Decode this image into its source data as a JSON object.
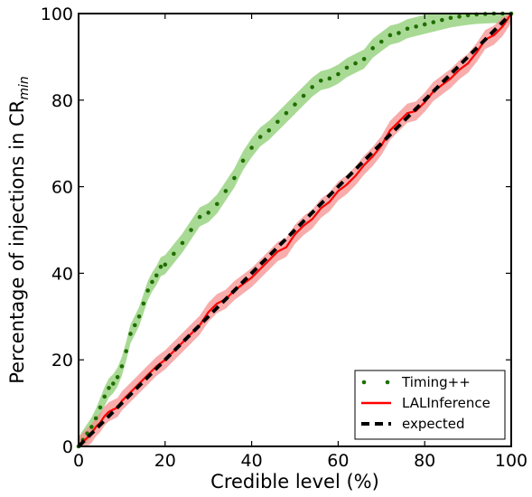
{
  "chart_data": {
    "type": "line",
    "xlabel": "Credible level (%)",
    "ylabel_main": "Percentage of injections in CR",
    "ylabel_sub": "min",
    "xlim": [
      0,
      100
    ],
    "ylim": [
      0,
      100
    ],
    "x_ticks": [
      0,
      20,
      40,
      60,
      80,
      100
    ],
    "y_ticks": [
      0,
      20,
      40,
      60,
      80,
      100
    ],
    "grid": false,
    "legend_position": "lower-right",
    "series": [
      {
        "name": "Timing++",
        "style": "dots",
        "color": "#1f6e00",
        "band_color": "#8ccd72",
        "band_halfwidth": 2.2,
        "x": [
          0,
          1,
          2,
          3,
          4,
          5,
          6,
          7,
          8,
          9,
          10,
          11,
          12,
          13,
          14,
          15,
          16,
          17,
          18,
          19,
          20,
          22,
          24,
          26,
          28,
          30,
          32,
          34,
          36,
          38,
          40,
          42,
          44,
          46,
          48,
          50,
          52,
          54,
          56,
          58,
          60,
          62,
          64,
          66,
          68,
          70,
          72,
          74,
          76,
          78,
          80,
          82,
          84,
          86,
          88,
          90,
          92,
          94,
          96,
          98,
          100
        ],
        "y": [
          0,
          1.5,
          3,
          4.5,
          6.5,
          9,
          11.5,
          13.5,
          14.5,
          16,
          18.5,
          22,
          26,
          28,
          30,
          33,
          36,
          38,
          39.5,
          41.5,
          42,
          44.5,
          47,
          50,
          53,
          54,
          56,
          59,
          62,
          66,
          69,
          71.5,
          73,
          75,
          77,
          79,
          81,
          83,
          84.5,
          85,
          86,
          87.5,
          88.5,
          89.5,
          92,
          93.5,
          95,
          95.5,
          96.5,
          97,
          97.5,
          98,
          98.5,
          99,
          99.3,
          99.6,
          99.8,
          99.9,
          100,
          100,
          100
        ]
      },
      {
        "name": "LALInference",
        "style": "line",
        "color": "#ff0000",
        "band_color": "#f59090",
        "band_halfwidth": 2.2,
        "x": [
          0,
          1,
          2,
          3,
          4,
          5,
          6,
          7,
          8,
          9,
          10,
          12,
          14,
          16,
          18,
          20,
          22,
          24,
          26,
          28,
          30,
          32,
          34,
          36,
          38,
          40,
          42,
          44,
          46,
          48,
          50,
          52,
          54,
          56,
          58,
          60,
          62,
          64,
          66,
          68,
          70,
          72,
          74,
          76,
          78,
          80,
          82,
          84,
          86,
          88,
          90,
          92,
          94,
          96,
          98,
          100
        ],
        "y": [
          0,
          1,
          2,
          3,
          4.5,
          5.5,
          7,
          8,
          8.5,
          9,
          10.5,
          12.5,
          14.5,
          16.5,
          18.5,
          20,
          22,
          24,
          26,
          28,
          31,
          33,
          34,
          36,
          37.5,
          39,
          41,
          43,
          45,
          46,
          49,
          51,
          52.5,
          55,
          56.5,
          59,
          60.5,
          62.5,
          65,
          67,
          69.5,
          73,
          75,
          77,
          77.5,
          79.5,
          82,
          83.5,
          85,
          87,
          88.5,
          91,
          94,
          95,
          97,
          100
        ]
      },
      {
        "name": "expected",
        "style": "dashed",
        "color": "#000000",
        "x": [
          0,
          100
        ],
        "y": [
          0,
          100
        ]
      }
    ]
  }
}
